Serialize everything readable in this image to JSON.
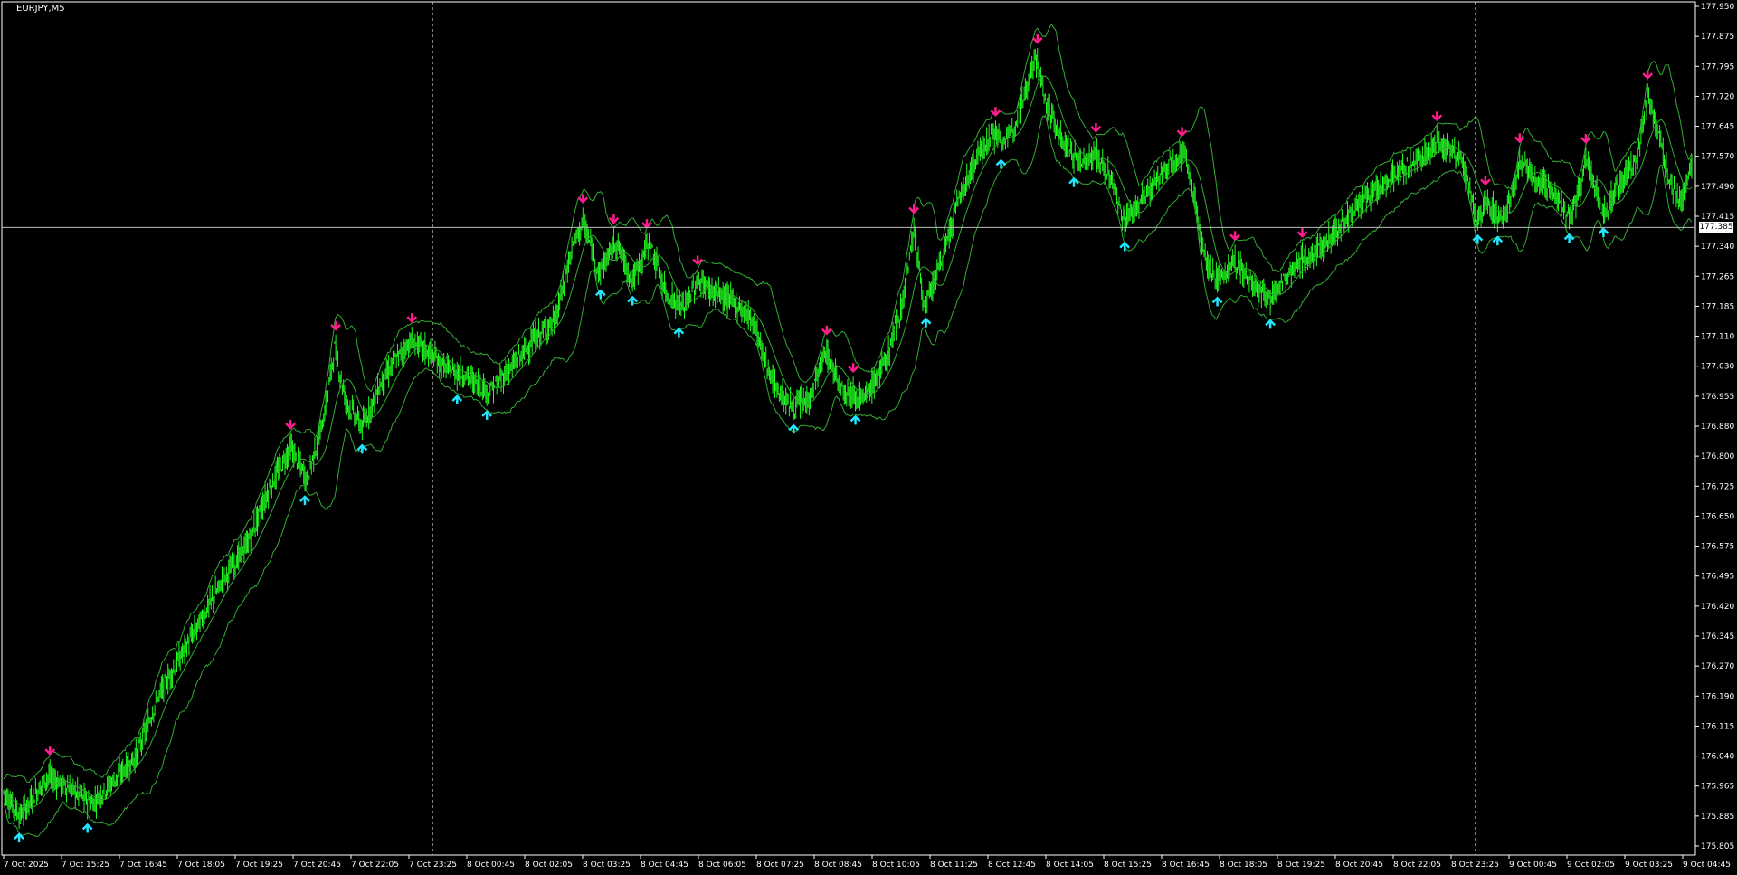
{
  "chart_data": {
    "type": "candlestick",
    "symbol": "EURJPY,M5",
    "current_price": "177.385",
    "ylim": [
      177.805,
      177.95
    ],
    "y_ticks": [
      "177.950",
      "177.875",
      "177.795",
      "177.720",
      "177.645",
      "177.570",
      "177.490",
      "177.415",
      "177.340",
      "177.265",
      "177.185",
      "177.110",
      "177.030",
      "176.955",
      "176.880",
      "176.800",
      "176.725",
      "176.650",
      "176.575",
      "176.495",
      "176.420",
      "176.345",
      "176.270",
      "176.190",
      "176.115",
      "176.040",
      "175.965",
      "175.885",
      "175.805"
    ],
    "x_ticks": [
      "7 Oct 2025",
      "7 Oct 15:25",
      "7 Oct 16:45",
      "7 Oct 18:05",
      "7 Oct 19:25",
      "7 Oct 20:45",
      "7 Oct 22:05",
      "7 Oct 23:25",
      "8 Oct 00:45",
      "8 Oct 02:05",
      "8 Oct 03:25",
      "8 Oct 04:45",
      "8 Oct 06:05",
      "8 Oct 07:25",
      "8 Oct 08:45",
      "8 Oct 10:05",
      "8 Oct 11:25",
      "8 Oct 12:45",
      "8 Oct 14:05",
      "8 Oct 15:25",
      "8 Oct 16:45",
      "8 Oct 18:05",
      "8 Oct 19:25",
      "8 Oct 20:45",
      "8 Oct 22:05",
      "8 Oct 23:25",
      "9 Oct 00:45",
      "9 Oct 02:05",
      "9 Oct 03:25",
      "9 Oct 04:45"
    ],
    "price_path": [
      [
        0,
        175.96
      ],
      [
        15,
        175.9
      ],
      [
        40,
        176.0
      ],
      [
        60,
        175.97
      ],
      [
        80,
        175.93
      ],
      [
        100,
        175.99
      ],
      [
        120,
        176.05
      ],
      [
        140,
        176.2
      ],
      [
        160,
        176.3
      ],
      [
        180,
        176.4
      ],
      [
        200,
        176.5
      ],
      [
        220,
        176.58
      ],
      [
        240,
        176.72
      ],
      [
        260,
        176.83
      ],
      [
        275,
        176.75
      ],
      [
        290,
        176.9
      ],
      [
        300,
        177.08
      ],
      [
        310,
        176.95
      ],
      [
        325,
        176.88
      ],
      [
        340,
        176.98
      ],
      [
        355,
        177.05
      ],
      [
        370,
        177.1
      ],
      [
        385,
        177.07
      ],
      [
        400,
        177.03
      ],
      [
        420,
        177.01
      ],
      [
        440,
        176.97
      ],
      [
        460,
        177.03
      ],
      [
        480,
        177.1
      ],
      [
        500,
        177.15
      ],
      [
        515,
        177.33
      ],
      [
        525,
        177.4
      ],
      [
        540,
        177.27
      ],
      [
        555,
        177.35
      ],
      [
        570,
        177.25
      ],
      [
        585,
        177.35
      ],
      [
        600,
        177.22
      ],
      [
        615,
        177.18
      ],
      [
        630,
        177.25
      ],
      [
        645,
        177.22
      ],
      [
        660,
        177.2
      ],
      [
        680,
        177.15
      ],
      [
        690,
        177.05
      ],
      [
        700,
        176.98
      ],
      [
        715,
        176.93
      ],
      [
        730,
        176.95
      ],
      [
        745,
        177.07
      ],
      [
        760,
        176.98
      ],
      [
        780,
        176.95
      ],
      [
        800,
        177.05
      ],
      [
        815,
        177.2
      ],
      [
        825,
        177.38
      ],
      [
        835,
        177.18
      ],
      [
        850,
        177.3
      ],
      [
        865,
        177.45
      ],
      [
        880,
        177.55
      ],
      [
        895,
        177.62
      ],
      [
        910,
        177.6
      ],
      [
        925,
        177.72
      ],
      [
        935,
        177.82
      ],
      [
        945,
        177.7
      ],
      [
        960,
        177.6
      ],
      [
        975,
        177.55
      ],
      [
        990,
        177.57
      ],
      [
        1005,
        177.5
      ],
      [
        1015,
        177.4
      ],
      [
        1030,
        177.45
      ],
      [
        1045,
        177.5
      ],
      [
        1060,
        177.55
      ],
      [
        1070,
        177.58
      ],
      [
        1080,
        177.45
      ],
      [
        1090,
        177.3
      ],
      [
        1100,
        177.25
      ],
      [
        1115,
        177.3
      ],
      [
        1130,
        177.25
      ],
      [
        1145,
        177.2
      ],
      [
        1160,
        177.25
      ],
      [
        1175,
        177.3
      ],
      [
        1190,
        177.32
      ],
      [
        1205,
        177.37
      ],
      [
        1220,
        177.42
      ],
      [
        1240,
        177.47
      ],
      [
        1260,
        177.52
      ],
      [
        1280,
        177.55
      ],
      [
        1300,
        177.6
      ],
      [
        1320,
        177.57
      ],
      [
        1335,
        177.4
      ],
      [
        1345,
        177.45
      ],
      [
        1360,
        177.4
      ],
      [
        1375,
        177.55
      ],
      [
        1390,
        177.5
      ],
      [
        1405,
        177.48
      ],
      [
        1420,
        177.4
      ],
      [
        1435,
        177.55
      ],
      [
        1450,
        177.42
      ],
      [
        1465,
        177.5
      ],
      [
        1480,
        177.55
      ],
      [
        1490,
        177.72
      ],
      [
        1500,
        177.62
      ],
      [
        1510,
        177.5
      ],
      [
        1520,
        177.45
      ],
      [
        1530,
        177.55
      ]
    ],
    "grid": false,
    "legend": "none",
    "colors": {
      "candle": "#22ff22",
      "band": "#33aa33",
      "buy_arrow": "#22e5ff",
      "sell_arrow": "#ff1b8d",
      "axis": "#ffffff"
    }
  }
}
